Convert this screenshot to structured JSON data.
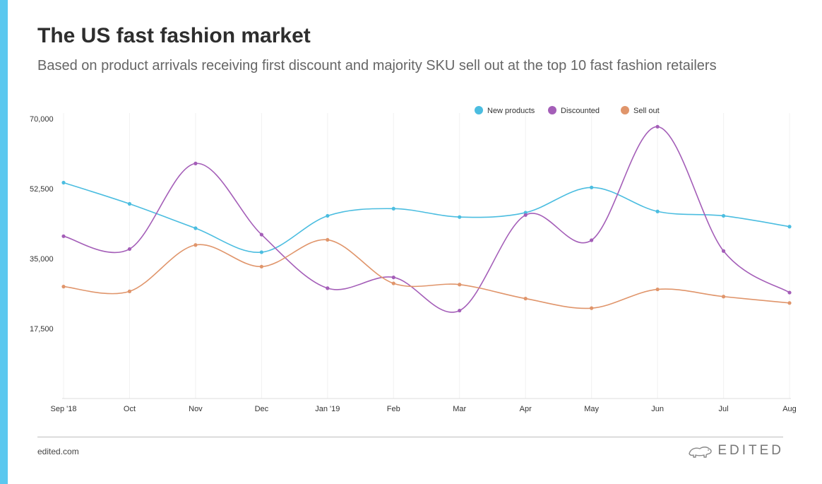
{
  "title": "The US fast fashion market",
  "subtitle": "Based on product arrivals receiving first discount and majority SKU sell out at the top 10 fast fashion retailers",
  "footer": {
    "source": "edited.com",
    "brand": "EDITED",
    "brand_icon": "bear-logo-icon"
  },
  "colors": {
    "sidebar": "#5bc8ef"
  },
  "chart_data": {
    "type": "line",
    "categories": [
      "Sep '18",
      "Oct",
      "Nov",
      "Dec",
      "Jan '19",
      "Feb",
      "Mar",
      "Apr",
      "May",
      "Jun",
      "Jul",
      "Aug"
    ],
    "series": [
      {
        "name": "New products",
        "color": "#4bbde0",
        "values": [
          54000,
          48700,
          42600,
          36600,
          45700,
          47500,
          45400,
          46500,
          52800,
          46800,
          45700,
          43000
        ]
      },
      {
        "name": "Discounted",
        "color": "#a45eb8",
        "values": [
          40600,
          37400,
          58800,
          41000,
          27600,
          30300,
          22000,
          45900,
          39600,
          68000,
          36900,
          26500
        ]
      },
      {
        "name": "Sell out",
        "color": "#e0956b",
        "values": [
          28000,
          26800,
          38400,
          33000,
          39700,
          28800,
          28500,
          25000,
          22600,
          27300,
          25500,
          23900
        ]
      }
    ],
    "yticks": [
      17500,
      35000,
      52500,
      70000
    ],
    "ytick_labels": [
      "17,500",
      "35,000",
      "52,500",
      "70,000"
    ],
    "ylim": [
      0,
      70000
    ],
    "xlabel": "",
    "ylabel": "",
    "legend": "top-right",
    "grid": "vertical"
  }
}
